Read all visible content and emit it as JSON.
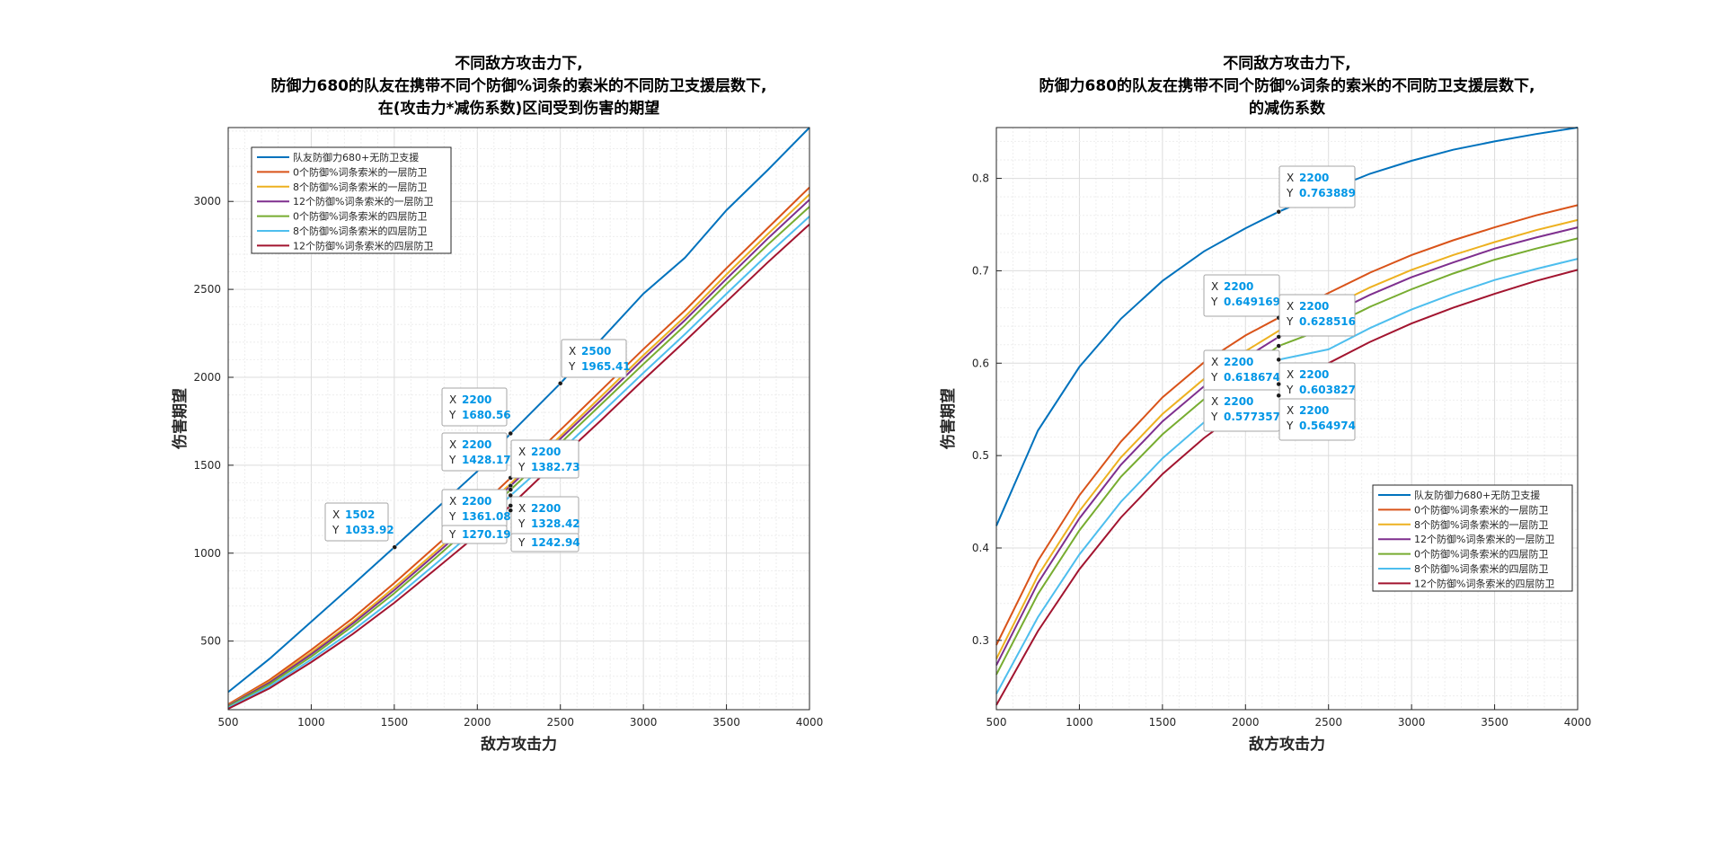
{
  "chart_data": [
    {
      "type": "line",
      "title": [
        "不同敌方攻击力下,",
        "防御力680的队友在携带不同个防御%词条的索米的不同防卫支援层数下,",
        "在(攻击力*减伤系数)区间受到伤害的期望"
      ],
      "xlabel": "敌方攻击力",
      "ylabel": "伤害期望",
      "xlim": [
        500,
        4000
      ],
      "ylim": [
        110,
        3420
      ],
      "xticks": [
        500,
        1000,
        1500,
        2000,
        2500,
        3000,
        3500,
        4000
      ],
      "yticks": [
        500,
        1000,
        1500,
        2000,
        2500,
        3000
      ],
      "grid": true,
      "legend_position": "top-left",
      "x": [
        500,
        750,
        1000,
        1250,
        1500,
        1750,
        2000,
        2200,
        2500,
        2750,
        3000,
        3250,
        3500,
        3750,
        4000
      ],
      "series": [
        {
          "name": "队友防御力680+无防卫支援",
          "color": "#0072BD",
          "values": [
            210,
            400,
            610,
            820,
            1034,
            1250,
            1465,
            1681,
            1965,
            2220,
            2475,
            2680,
            2950,
            3180,
            3420
          ]
        },
        {
          "name": "0个防御%词条索米的一层防卫",
          "color": "#D95319",
          "values": [
            140,
            280,
            450,
            630,
            830,
            1040,
            1250,
            1428,
            1700,
            1930,
            2160,
            2380,
            2620,
            2850,
            3080
          ]
        },
        {
          "name": "8个防御%词条索米的一层防卫",
          "color": "#EDB120",
          "values": [
            135,
            270,
            435,
            610,
            805,
            1010,
            1220,
            1395,
            1665,
            1895,
            2125,
            2345,
            2585,
            2815,
            3040
          ]
        },
        {
          "name": "12个防御%词条索米的一层防卫",
          "color": "#7E2F8E",
          "values": [
            132,
            265,
            425,
            600,
            790,
            995,
            1200,
            1383,
            1650,
            1875,
            2105,
            2325,
            2560,
            2790,
            3010
          ]
        },
        {
          "name": "0个防御%词条索米的四层防卫",
          "color": "#77AC30",
          "values": [
            128,
            255,
            412,
            585,
            772,
            975,
            1180,
            1361,
            1625,
            1850,
            2075,
            2295,
            2530,
            2755,
            2970
          ]
        },
        {
          "name": "8个防御%词条索米的四层防卫",
          "color": "#4DBEEE",
          "values": [
            122,
            243,
            395,
            560,
            742,
            940,
            1140,
            1328,
            1580,
            1800,
            2025,
            2245,
            2475,
            2700,
            2915
          ]
        },
        {
          "name": "12个防御%词条索米的四层防卫",
          "color": "#A2142F",
          "values": [
            115,
            232,
            380,
            540,
            718,
            910,
            1105,
            1270,
            1540,
            1760,
            1985,
            2205,
            2430,
            2655,
            2870
          ]
        }
      ],
      "annotations": [
        {
          "x": 1502,
          "y": 1033.92,
          "x_label": "1502",
          "y_label": "1033.92"
        },
        {
          "x": 2200,
          "y": 1680.56,
          "x_label": "2200",
          "y_label": "1680.56"
        },
        {
          "x": 2500,
          "y": 1965.41,
          "x_label": "2500",
          "y_label": "1965.41"
        },
        {
          "x": 2200,
          "y": 1428.17,
          "x_label": "2200",
          "y_label": "1428.17"
        },
        {
          "x": 2200,
          "y": 1382.73,
          "x_label": "2200",
          "y_label": "1382.73"
        },
        {
          "x": 2200,
          "y": 1361.08,
          "x_label": "2200",
          "y_label": "1361.08"
        },
        {
          "x": 2200,
          "y": 1328.42,
          "x_label": "2200",
          "y_label": "1328.42"
        },
        {
          "x": 2200,
          "y": 1270.19,
          "x_label": "",
          "y_label": "1270.19"
        },
        {
          "x": 2200,
          "y": 1242.94,
          "x_label": "",
          "y_label": "1242.94"
        }
      ]
    },
    {
      "type": "line",
      "title": [
        "不同敌方攻击力下,",
        "防御力680的队友在携带不同个防御%词条的索米的不同防卫支援层数下,",
        "的减伤系数"
      ],
      "xlabel": "敌方攻击力",
      "ylabel": "伤害期望",
      "xlim": [
        500,
        4000
      ],
      "ylim": [
        0.225,
        0.855
      ],
      "xticks": [
        500,
        1000,
        1500,
        2000,
        2500,
        3000,
        3500,
        4000
      ],
      "yticks": [
        0.3,
        0.4,
        0.5,
        0.6,
        0.7,
        0.8
      ],
      "grid": true,
      "legend_position": "bottom-right",
      "x": [
        500,
        750,
        1000,
        1250,
        1500,
        1750,
        2000,
        2200,
        2500,
        2750,
        3000,
        3250,
        3500,
        3750,
        4000
      ],
      "series": [
        {
          "name": "队友防御力680+无防卫支援",
          "color": "#0072BD",
          "values": [
            0.424,
            0.527,
            0.596,
            0.648,
            0.689,
            0.721,
            0.746,
            0.7639,
            0.787,
            0.805,
            0.819,
            0.831,
            0.84,
            0.848,
            0.855
          ]
        },
        {
          "name": "0个防御%词条索米的一层防卫",
          "color": "#D95319",
          "values": [
            0.295,
            0.386,
            0.457,
            0.515,
            0.563,
            0.601,
            0.63,
            0.6492,
            0.676,
            0.698,
            0.717,
            0.733,
            0.747,
            0.76,
            0.771
          ]
        },
        {
          "name": "8个防御%词条索米的一层防卫",
          "color": "#EDB120",
          "values": [
            0.28,
            0.37,
            0.44,
            0.498,
            0.545,
            0.583,
            0.613,
            0.635,
            0.66,
            0.682,
            0.701,
            0.717,
            0.731,
            0.744,
            0.755
          ]
        },
        {
          "name": "12个防御%词条索米的一层防卫",
          "color": "#7E2F8E",
          "values": [
            0.273,
            0.362,
            0.432,
            0.49,
            0.537,
            0.575,
            0.606,
            0.6285,
            0.652,
            0.674,
            0.693,
            0.709,
            0.724,
            0.736,
            0.747
          ]
        },
        {
          "name": "0个防御%词条索米的四层防卫",
          "color": "#77AC30",
          "values": [
            0.263,
            0.35,
            0.419,
            0.477,
            0.523,
            0.561,
            0.593,
            0.6187,
            0.639,
            0.661,
            0.68,
            0.697,
            0.712,
            0.724,
            0.735
          ]
        },
        {
          "name": "8个防御%词条索米的四层防卫",
          "color": "#4DBEEE",
          "values": [
            0.242,
            0.325,
            0.393,
            0.45,
            0.497,
            0.536,
            0.568,
            0.6038,
            0.615,
            0.638,
            0.658,
            0.675,
            0.69,
            0.702,
            0.713
          ]
        },
        {
          "name": "12个防御%词条索米的四层防卫",
          "color": "#A2142F",
          "values": [
            0.23,
            0.31,
            0.377,
            0.433,
            0.48,
            0.519,
            0.552,
            0.5774,
            0.6,
            0.623,
            0.643,
            0.66,
            0.675,
            0.689,
            0.701
          ]
        }
      ],
      "annotations": [
        {
          "x": 2200,
          "y": 0.763889,
          "x_label": "2200",
          "y_label": "0.763889"
        },
        {
          "x": 2200,
          "y": 0.649169,
          "x_label": "2200",
          "y_label": "0.649169"
        },
        {
          "x": 2200,
          "y": 0.628516,
          "x_label": "2200",
          "y_label": "0.628516"
        },
        {
          "x": 2200,
          "y": 0.618674,
          "x_label": "2200",
          "y_label": "0.618674"
        },
        {
          "x": 2200,
          "y": 0.603827,
          "x_label": "2200",
          "y_label": "0.603827"
        },
        {
          "x": 2200,
          "y": 0.577357,
          "x_label": "2200",
          "y_label": "0.577357"
        },
        {
          "x": 2200,
          "y": 0.564974,
          "x_label": "2200",
          "y_label": "0.564974"
        }
      ]
    }
  ]
}
